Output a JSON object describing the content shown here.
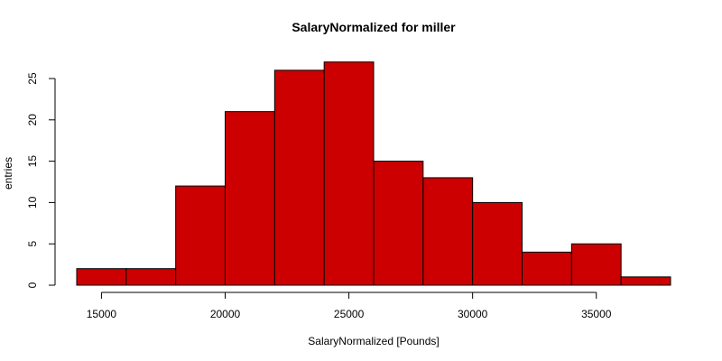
{
  "chart_data": {
    "type": "bar",
    "title": "SalaryNormalized for miller",
    "xlabel": "SalaryNormalized [Pounds]",
    "ylabel": "entries",
    "bin_edges": [
      14000,
      16000,
      18000,
      20000,
      22000,
      24000,
      26000,
      28000,
      30000,
      32000,
      34000,
      36000,
      38000
    ],
    "values": [
      2,
      2,
      12,
      21,
      26,
      27,
      15,
      13,
      10,
      4,
      5,
      1
    ],
    "x_ticks": [
      15000,
      20000,
      25000,
      30000,
      35000
    ],
    "y_ticks": [
      0,
      5,
      10,
      15,
      20,
      25
    ],
    "xlim": [
      14000,
      38000
    ],
    "ylim": [
      0,
      27
    ],
    "bar_color": "#cc0000",
    "grid": false
  }
}
